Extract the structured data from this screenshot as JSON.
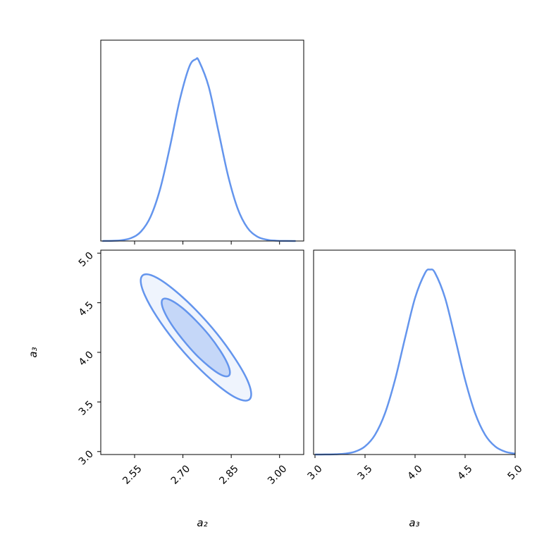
{
  "chart_data": [
    {
      "type": "line",
      "color": "#6495ed",
      "xlim": [
        2.445,
        3.075
      ],
      "ylim": [
        0,
        1.105
      ],
      "xticks": [
        2.55,
        2.7,
        2.85,
        3.0
      ],
      "xtick_labels": false,
      "x": [
        2.45,
        2.48,
        2.51,
        2.54,
        2.57,
        2.6,
        2.63,
        2.66,
        2.69,
        2.72,
        2.74,
        2.75,
        2.78,
        2.81,
        2.84,
        2.87,
        2.9,
        2.93,
        2.96,
        2.99,
        3.02,
        3.05
      ],
      "values": [
        0.0002,
        0.001,
        0.0045,
        0.0169,
        0.0524,
        0.1353,
        0.2908,
        0.5205,
        0.7749,
        0.96,
        1,
        0.9898,
        0.8495,
        0.6065,
        0.3604,
        0.1783,
        0.0734,
        0.0251,
        0.0072,
        0.0017,
        0.0003,
        0.0001
      ]
    },
    {
      "type": "contour",
      "x_label": "a₂",
      "y_label": "a₃",
      "xlim": [
        2.445,
        3.075
      ],
      "ylim": [
        2.97,
        5.03
      ],
      "xticks": [
        {
          "value": 2.55,
          "label": "2.55"
        },
        {
          "value": 2.7,
          "label": "2.70"
        },
        {
          "value": 2.85,
          "label": "2.85"
        },
        {
          "value": 3.0,
          "label": "3.00"
        }
      ],
      "yticks": [
        {
          "value": 3.0,
          "label": "3.0"
        },
        {
          "value": 3.5,
          "label": "3.5"
        },
        {
          "value": 4.0,
          "label": "4.0"
        },
        {
          "value": 4.5,
          "label": "4.5"
        },
        {
          "value": 5.0,
          "label": "5.0"
        }
      ],
      "series": [
        {
          "color": "#6495ed",
          "fill_opacity": 0.1,
          "x": [
            2.912,
            2.899,
            2.861,
            2.806,
            2.74,
            2.674,
            2.619,
            2.582,
            2.569,
            2.582,
            2.619,
            2.674,
            2.74,
            2.806,
            2.861,
            2.899
          ],
          "y": [
            3.577,
            3.727,
            3.941,
            4.187,
            4.428,
            4.626,
            4.752,
            4.786,
            4.723,
            4.574,
            4.359,
            4.113,
            3.872,
            3.674,
            3.548,
            3.514
          ]
        },
        {
          "color": "#6495ed",
          "fill_opacity": 0.3,
          "x": [
            2.846,
            2.838,
            2.815,
            2.781,
            2.74,
            2.7,
            2.665,
            2.642,
            2.634,
            2.642,
            2.665,
            2.7,
            2.74,
            2.781,
            2.815,
            2.838
          ],
          "y": [
            3.797,
            3.889,
            4.021,
            4.173,
            4.321,
            4.443,
            4.521,
            4.542,
            4.503,
            4.411,
            4.279,
            4.127,
            3.979,
            3.857,
            3.779,
            3.758
          ]
        }
      ]
    },
    {
      "type": "line",
      "x_label": "a₃",
      "color": "#6495ed",
      "xlim": [
        2.986,
        5.0
      ],
      "ylim": [
        0,
        1.105
      ],
      "xticks": [
        {
          "value": 3.0,
          "label": "3.0"
        },
        {
          "value": 3.5,
          "label": "3.5"
        },
        {
          "value": 4.0,
          "label": "4.0"
        },
        {
          "value": 4.5,
          "label": "4.5"
        },
        {
          "value": 5.0,
          "label": "5.0"
        }
      ],
      "x": [
        3.0,
        3.1,
        3.2,
        3.3,
        3.4,
        3.5,
        3.6,
        3.7,
        3.8,
        3.9,
        4.0,
        4.1,
        4.15,
        4.2,
        4.3,
        4.4,
        4.5,
        4.6,
        4.7,
        4.8,
        4.9,
        5.0
      ],
      "values": [
        0.0001,
        0.0003,
        0.0013,
        0.0048,
        0.0156,
        0.0439,
        0.1068,
        0.2236,
        0.4041,
        0.6298,
        0.8466,
        0.9817,
        1,
        0.9817,
        0.8466,
        0.6298,
        0.4041,
        0.2236,
        0.1068,
        0.0439,
        0.0156,
        0.0048
      ]
    }
  ]
}
